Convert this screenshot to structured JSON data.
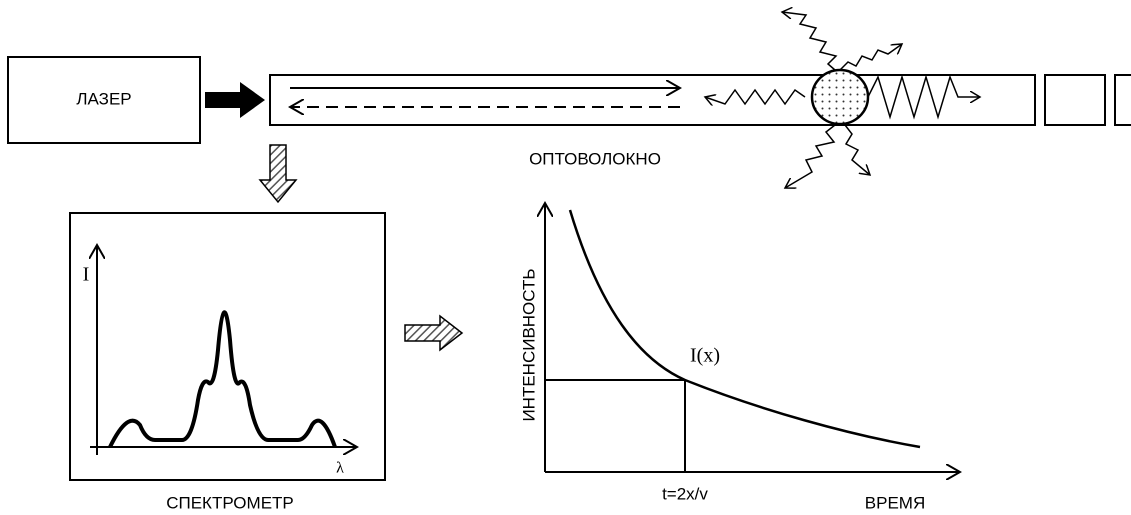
{
  "laser": {
    "label": "ЛАЗЕР"
  },
  "fiber": {
    "label": "ОПТОВОЛОКНО"
  },
  "spectrometer": {
    "label": "СПЕКТРОМЕТР",
    "y_axis_label": "I",
    "x_axis_label": "λ"
  },
  "graph": {
    "y_axis_label": "ИНТЕНСИВНОСТЬ",
    "x_axis_label": "ВРЕМЯ",
    "point_label": "I(x)",
    "time_label": "t=2x/v"
  }
}
